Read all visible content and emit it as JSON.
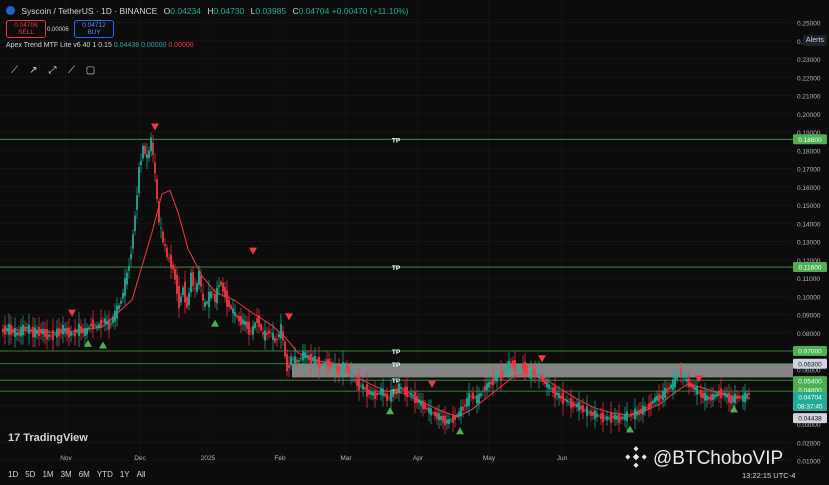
{
  "header": {
    "title": "Syscoin / TetherUS · 1D · BINANCE",
    "open_label": "O",
    "open": "0.04234",
    "high_label": "H",
    "high": "0.04730",
    "low_label": "L",
    "low": "0.03985",
    "close_label": "C",
    "close": "0.04704",
    "change": "+0.00470 (+11.10%)"
  },
  "trade": {
    "sell_price": "0.04706",
    "sell_label": "SELL",
    "spread": "0.00006",
    "buy_price": "0.04712",
    "buy_label": "BUY"
  },
  "indicator": {
    "name": "Apex Trend MTF Lite v6 40 1 0.15",
    "v1": "0.04438",
    "v2": "0.00000",
    "v3": "0.00000"
  },
  "drawing_tools": [
    "trend-line-icon",
    "ray-icon",
    "extended-line-icon",
    "info-line-icon",
    "rectangle-icon"
  ],
  "alerts_label": "Alerts",
  "price_axis": [
    "0.25000",
    "0.24000",
    "0.23000",
    "0.22000",
    "0.21000",
    "0.20000",
    "0.19000",
    "0.18000",
    "0.17000",
    "0.16000",
    "0.15000",
    "0.14000",
    "0.13000",
    "0.12000",
    "0.11000",
    "0.10000",
    "0.09000",
    "0.08000",
    "0.07000",
    "0.06000",
    "0.05000",
    "0.04000",
    "0.03000",
    "0.02000",
    "0.01000"
  ],
  "time_axis": [
    "Nov",
    "Dec",
    "2025",
    "Feb",
    "Mar",
    "Apr",
    "May",
    "Jun"
  ],
  "tp_label": "TP",
  "price_tags": {
    "tp1": "0.18600",
    "tp2": "0.11600",
    "tp3": "0.07000",
    "tp4": "0.06300",
    "tp5": "0.05400",
    "tp6": "0.04800",
    "last": "0.04704",
    "countdown": "08:37:45",
    "trend": "0.04438"
  },
  "colors": {
    "up": "#22ab94",
    "down": "#f23645",
    "tp_line": "#4caf50",
    "trend_line": "#f23645",
    "zone": "#9a9a9a",
    "background": "#0c0c0c"
  },
  "chart_data": {
    "type": "candlestick",
    "symbol": "Syscoin / TetherUS",
    "interval": "1D",
    "exchange": "BINANCE",
    "ylim": [
      0.01,
      0.25
    ],
    "tp_levels": [
      0.186,
      0.116,
      0.07,
      0.063,
      0.054,
      0.048
    ],
    "supply_zone": [
      0.0555,
      0.063
    ],
    "close_path": [
      [
        0,
        0.081
      ],
      [
        8,
        0.082
      ],
      [
        16,
        0.079
      ],
      [
        24,
        0.083
      ],
      [
        32,
        0.08
      ],
      [
        40,
        0.081
      ],
      [
        48,
        0.078
      ],
      [
        56,
        0.08
      ],
      [
        62,
        0.082
      ],
      [
        70,
        0.079
      ],
      [
        78,
        0.082
      ],
      [
        84,
        0.08
      ],
      [
        90,
        0.085
      ],
      [
        96,
        0.083
      ],
      [
        102,
        0.087
      ],
      [
        108,
        0.084
      ],
      [
        114,
        0.09
      ],
      [
        120,
        0.098
      ],
      [
        126,
        0.112
      ],
      [
        130,
        0.125
      ],
      [
        134,
        0.145
      ],
      [
        138,
        0.17
      ],
      [
        142,
        0.182
      ],
      [
        146,
        0.175
      ],
      [
        150,
        0.186
      ],
      [
        154,
        0.165
      ],
      [
        158,
        0.14
      ],
      [
        162,
        0.13
      ],
      [
        166,
        0.122
      ],
      [
        170,
        0.118
      ],
      [
        174,
        0.11
      ],
      [
        178,
        0.096
      ],
      [
        182,
        0.105
      ],
      [
        186,
        0.094
      ],
      [
        190,
        0.112
      ],
      [
        194,
        0.102
      ],
      [
        198,
        0.113
      ],
      [
        202,
        0.095
      ],
      [
        206,
        0.097
      ],
      [
        210,
        0.102
      ],
      [
        214,
        0.098
      ],
      [
        218,
        0.108
      ],
      [
        222,
        0.104
      ],
      [
        226,
        0.097
      ],
      [
        232,
        0.091
      ],
      [
        238,
        0.087
      ],
      [
        244,
        0.085
      ],
      [
        250,
        0.08
      ],
      [
        256,
        0.088
      ],
      [
        262,
        0.078
      ],
      [
        268,
        0.081
      ],
      [
        274,
        0.075
      ],
      [
        280,
        0.082
      ],
      [
        286,
        0.06
      ],
      [
        290,
        0.066
      ],
      [
        296,
        0.064
      ],
      [
        302,
        0.068
      ],
      [
        308,
        0.066
      ],
      [
        314,
        0.065
      ],
      [
        320,
        0.062
      ],
      [
        326,
        0.064
      ],
      [
        332,
        0.061
      ],
      [
        338,
        0.059
      ],
      [
        344,
        0.062
      ],
      [
        350,
        0.057
      ],
      [
        356,
        0.052
      ],
      [
        362,
        0.05
      ],
      [
        368,
        0.047
      ],
      [
        374,
        0.046
      ],
      [
        380,
        0.048
      ],
      [
        386,
        0.044
      ],
      [
        392,
        0.047
      ],
      [
        398,
        0.05
      ],
      [
        404,
        0.048
      ],
      [
        410,
        0.046
      ],
      [
        416,
        0.043
      ],
      [
        422,
        0.04
      ],
      [
        428,
        0.037
      ],
      [
        434,
        0.035
      ],
      [
        440,
        0.033
      ],
      [
        446,
        0.031
      ],
      [
        452,
        0.033
      ],
      [
        458,
        0.036
      ],
      [
        464,
        0.041
      ],
      [
        470,
        0.046
      ],
      [
        476,
        0.043
      ],
      [
        482,
        0.049
      ],
      [
        488,
        0.052
      ],
      [
        494,
        0.055
      ],
      [
        500,
        0.057
      ],
      [
        506,
        0.061
      ],
      [
        510,
        0.064
      ],
      [
        516,
        0.06
      ],
      [
        522,
        0.062
      ],
      [
        528,
        0.057
      ],
      [
        534,
        0.059
      ],
      [
        540,
        0.055
      ],
      [
        546,
        0.051
      ],
      [
        552,
        0.048
      ],
      [
        558,
        0.045
      ],
      [
        564,
        0.043
      ],
      [
        570,
        0.041
      ],
      [
        576,
        0.04
      ],
      [
        582,
        0.038
      ],
      [
        588,
        0.036
      ],
      [
        594,
        0.035
      ],
      [
        600,
        0.034
      ],
      [
        606,
        0.033
      ],
      [
        612,
        0.034
      ],
      [
        618,
        0.033
      ],
      [
        624,
        0.034
      ],
      [
        630,
        0.035
      ],
      [
        636,
        0.036
      ],
      [
        642,
        0.038
      ],
      [
        648,
        0.04
      ],
      [
        654,
        0.044
      ],
      [
        660,
        0.045
      ],
      [
        666,
        0.049
      ],
      [
        672,
        0.052
      ],
      [
        678,
        0.059
      ],
      [
        682,
        0.056
      ],
      [
        688,
        0.052
      ],
      [
        694,
        0.049
      ],
      [
        700,
        0.046
      ],
      [
        706,
        0.044
      ],
      [
        712,
        0.045
      ],
      [
        718,
        0.047
      ],
      [
        724,
        0.046
      ],
      [
        730,
        0.043
      ],
      [
        736,
        0.045
      ],
      [
        742,
        0.044
      ],
      [
        748,
        0.047
      ]
    ],
    "trend_path": [
      [
        0,
        0.082
      ],
      [
        60,
        0.08
      ],
      [
        100,
        0.083
      ],
      [
        130,
        0.098
      ],
      [
        150,
        0.135
      ],
      [
        160,
        0.156
      ],
      [
        168,
        0.158
      ],
      [
        176,
        0.146
      ],
      [
        186,
        0.126
      ],
      [
        200,
        0.111
      ],
      [
        214,
        0.102
      ],
      [
        232,
        0.098
      ],
      [
        250,
        0.091
      ],
      [
        270,
        0.084
      ],
      [
        284,
        0.077
      ],
      [
        296,
        0.069
      ],
      [
        312,
        0.065
      ],
      [
        332,
        0.063
      ],
      [
        350,
        0.057
      ],
      [
        368,
        0.052
      ],
      [
        384,
        0.048
      ],
      [
        400,
        0.047
      ],
      [
        420,
        0.042
      ],
      [
        440,
        0.037
      ],
      [
        456,
        0.034
      ],
      [
        470,
        0.038
      ],
      [
        486,
        0.045
      ],
      [
        500,
        0.051
      ],
      [
        512,
        0.056
      ],
      [
        526,
        0.058
      ],
      [
        540,
        0.056
      ],
      [
        556,
        0.05
      ],
      [
        574,
        0.044
      ],
      [
        592,
        0.039
      ],
      [
        610,
        0.036
      ],
      [
        626,
        0.035
      ],
      [
        642,
        0.037
      ],
      [
        658,
        0.041
      ],
      [
        672,
        0.047
      ],
      [
        686,
        0.052
      ],
      [
        700,
        0.05
      ],
      [
        716,
        0.047
      ],
      [
        732,
        0.045
      ],
      [
        748,
        0.044
      ]
    ],
    "buy_signals": [
      [
        86,
        0.074
      ],
      [
        101,
        0.073
      ],
      [
        213,
        0.085
      ],
      [
        388,
        0.037
      ],
      [
        458,
        0.026
      ],
      [
        628,
        0.027
      ],
      [
        732,
        0.038
      ]
    ],
    "sell_signals": [
      [
        70,
        0.091
      ],
      [
        153,
        0.193
      ],
      [
        251,
        0.125
      ],
      [
        287,
        0.089
      ],
      [
        430,
        0.052
      ],
      [
        523,
        0.06
      ],
      [
        540,
        0.066
      ],
      [
        697,
        0.055
      ]
    ]
  }
}
